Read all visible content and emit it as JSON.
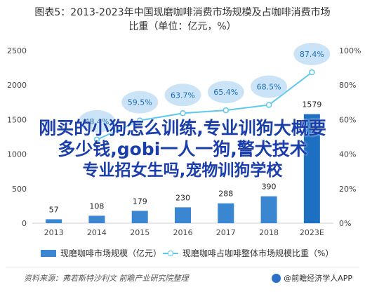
{
  "title_line1": "图表5：2013-2023年中国现磨咖啡消费市场规模及占咖啡消费市场",
  "title_line2": "比重（单位：亿元，%）",
  "overlay": {
    "line1": "刚买的小狗怎么训练,专业训狗大概要",
    "line2": "多少钱,gobi一人一狗,警犬技术",
    "line3": "专业招女生吗,宠物训狗学校"
  },
  "legend": {
    "bar_label": "现磨咖啡市场规模（亿元）",
    "line_label": "现磨咖啡占咖啡整体市场规模比重（%）"
  },
  "source": "资料来源：弗若斯特沙利文 前瞻产业研究院整理",
  "brand": "@前瞻经济学人APP",
  "chart_data": {
    "type": "bar",
    "categories": [
      "2013",
      "2014",
      "2015",
      "2016",
      "2017",
      "2018",
      "2023E"
    ],
    "series": [
      {
        "name": "现磨咖啡市场规模（亿元）",
        "type": "bar",
        "axis": "left",
        "values": [
          57,
          108,
          179,
          230,
          288,
          390,
          1579
        ]
      },
      {
        "name": "现磨咖啡占咖啡整体市场规模比重（%）",
        "type": "line",
        "axis": "right",
        "values": [
          null,
          48.4,
          59.5,
          63.7,
          65.4,
          68.5,
          87.4
        ]
      }
    ],
    "visible_line_labels": [
      "",
      "48.4%",
      "59.5%",
      "63.7%",
      "65.4%",
      "68.5%",
      "87.4%"
    ],
    "left_ticks": [
      "0",
      "500",
      "1000",
      "1500",
      "2000",
      "2500"
    ],
    "right_ticks": [
      "0%",
      "20%",
      "40%",
      "60%",
      "80%",
      "100%"
    ],
    "ylim_left": [
      0,
      2500
    ],
    "ylim_right": [
      0,
      100
    ],
    "grid": false,
    "legend_position": "bottom",
    "colors": {
      "bar": "#3a86d1",
      "highlight": "#1d6fc2",
      "line": "#5bc8ef",
      "callout": "#cbe3f7",
      "label": "#1a6eb8"
    }
  }
}
